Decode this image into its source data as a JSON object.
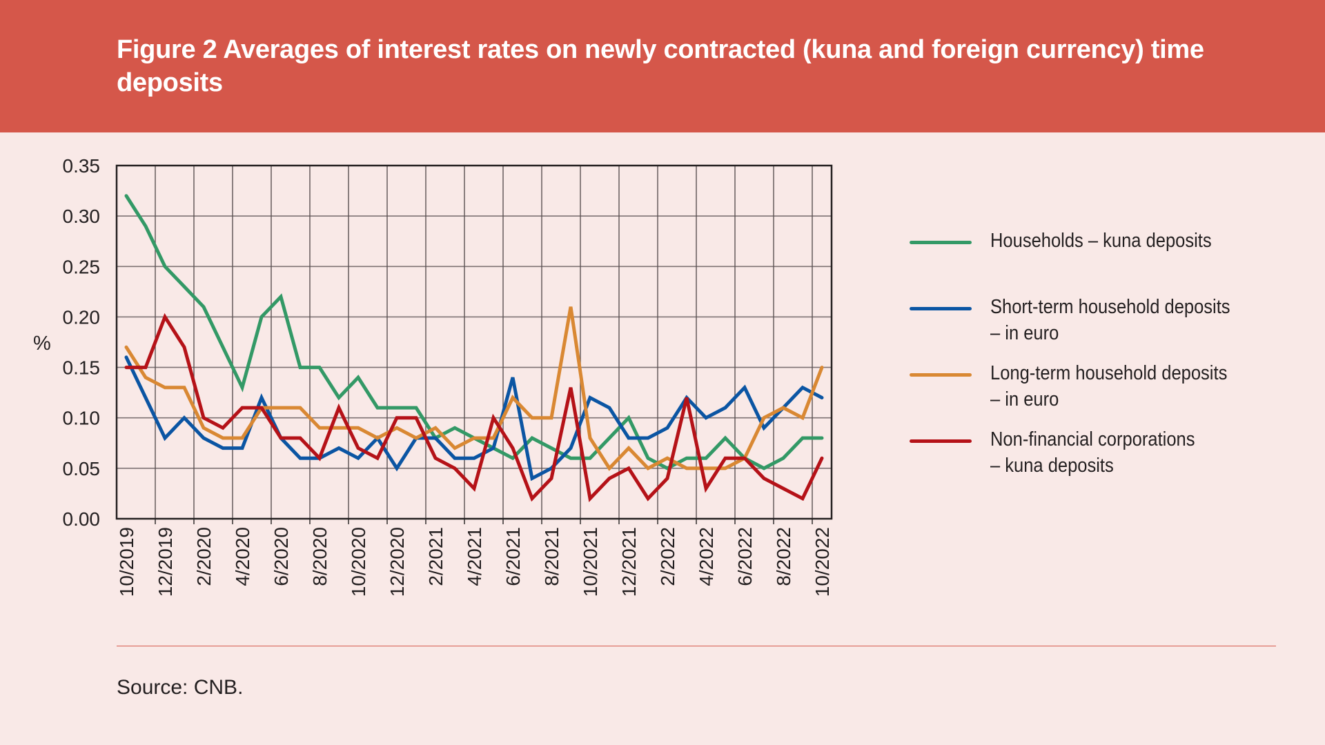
{
  "header": {
    "title": "Figure 2 Averages of interest rates on newly contracted (kuna and foreign currency) time deposits"
  },
  "footer": {
    "source": "Source: CNB."
  },
  "colors": {
    "header_bg": "#d5574a",
    "page_bg": "#f9e9e7",
    "green": "#339966",
    "blue": "#0b55a3",
    "orange": "#d98833",
    "red": "#b51218"
  },
  "chart_data": {
    "type": "line",
    "title": "Figure 2 Averages of interest rates on newly contracted (kuna and foreign currency) time deposits",
    "xlabel": "",
    "ylabel": "%",
    "ylim": [
      0,
      0.35
    ],
    "yticks": [
      "0.00",
      "0.05",
      "0.10",
      "0.15",
      "0.20",
      "0.25",
      "0.30",
      "0.35"
    ],
    "grid": true,
    "legend_position": "right",
    "x": [
      "10/2019",
      "11/2019",
      "12/2019",
      "1/2020",
      "2/2020",
      "3/2020",
      "4/2020",
      "5/2020",
      "6/2020",
      "7/2020",
      "8/2020",
      "9/2020",
      "10/2020",
      "11/2020",
      "12/2020",
      "1/2021",
      "2/2021",
      "3/2021",
      "4/2021",
      "5/2021",
      "6/2021",
      "7/2021",
      "8/2021",
      "9/2021",
      "10/2021",
      "11/2021",
      "12/2021",
      "1/2022",
      "2/2022",
      "3/2022",
      "4/2022",
      "5/2022",
      "6/2022",
      "7/2022",
      "8/2022",
      "9/2022",
      "10/2022"
    ],
    "xtick_labels": [
      "10/2019",
      "12/2019",
      "2/2020",
      "4/2020",
      "6/2020",
      "8/2020",
      "10/2020",
      "12/2020",
      "2/2021",
      "4/2021",
      "6/2021",
      "8/2021",
      "10/2021",
      "12/2021",
      "2/2022",
      "4/2022",
      "6/2022",
      "8/2022",
      "10/2022"
    ],
    "series": [
      {
        "name": "Households – kuna deposits",
        "label": "Households – kuna deposits",
        "color": "#339966",
        "values": [
          0.32,
          0.29,
          0.25,
          0.23,
          0.21,
          0.17,
          0.13,
          0.2,
          0.22,
          0.15,
          0.15,
          0.12,
          0.14,
          0.11,
          0.11,
          0.11,
          0.08,
          0.09,
          0.08,
          0.07,
          0.06,
          0.08,
          0.07,
          0.06,
          0.06,
          0.08,
          0.1,
          0.06,
          0.05,
          0.06,
          0.06,
          0.08,
          0.06,
          0.05,
          0.06,
          0.08,
          0.08
        ]
      },
      {
        "name": "Short-term household deposits – in euro",
        "label": "Short-term household deposits\n– in euro",
        "color": "#0b55a3",
        "values": [
          0.16,
          0.12,
          0.08,
          0.1,
          0.08,
          0.07,
          0.07,
          0.12,
          0.08,
          0.06,
          0.06,
          0.07,
          0.06,
          0.08,
          0.05,
          0.08,
          0.08,
          0.06,
          0.06,
          0.07,
          0.14,
          0.04,
          0.05,
          0.07,
          0.12,
          0.11,
          0.08,
          0.08,
          0.09,
          0.12,
          0.1,
          0.11,
          0.13,
          0.09,
          0.11,
          0.13,
          0.12
        ]
      },
      {
        "name": "Long-term household deposits – in euro",
        "label": "Long-term household deposits\n– in euro",
        "color": "#d98833",
        "values": [
          0.17,
          0.14,
          0.13,
          0.13,
          0.09,
          0.08,
          0.08,
          0.11,
          0.11,
          0.11,
          0.09,
          0.09,
          0.09,
          0.08,
          0.09,
          0.08,
          0.09,
          0.07,
          0.08,
          0.08,
          0.12,
          0.1,
          0.1,
          0.21,
          0.08,
          0.05,
          0.07,
          0.05,
          0.06,
          0.05,
          0.05,
          0.05,
          0.06,
          0.1,
          0.11,
          0.1,
          0.15
        ]
      },
      {
        "name": "Non-financial corporations – kuna deposits",
        "label": "Non-financial corporations\n– kuna deposits",
        "color": "#b51218",
        "values": [
          0.15,
          0.15,
          0.2,
          0.17,
          0.1,
          0.09,
          0.11,
          0.11,
          0.08,
          0.08,
          0.06,
          0.11,
          0.07,
          0.06,
          0.1,
          0.1,
          0.06,
          0.05,
          0.03,
          0.1,
          0.07,
          0.02,
          0.04,
          0.13,
          0.02,
          0.04,
          0.05,
          0.02,
          0.04,
          0.12,
          0.03,
          0.06,
          0.06,
          0.04,
          0.03,
          0.02,
          0.06
        ]
      }
    ]
  }
}
